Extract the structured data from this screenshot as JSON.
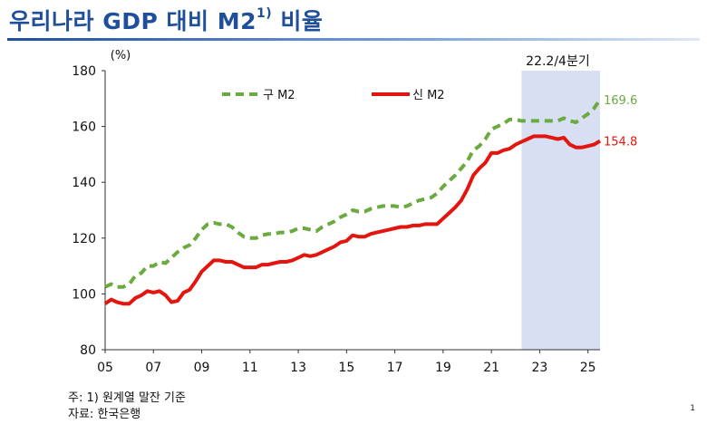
{
  "title": {
    "main": "우리나라 GDP 대비 M2",
    "sup": "1)",
    "suffix": " 비율"
  },
  "chart_data": {
    "type": "line",
    "unit_label": "(%)",
    "ylim": [
      80,
      180
    ],
    "yticks": [
      80,
      100,
      120,
      140,
      160,
      180
    ],
    "xlim": [
      2005,
      2025.5
    ],
    "xticks": [
      {
        "value": 2005,
        "label": "05"
      },
      {
        "value": 2007,
        "label": "07"
      },
      {
        "value": 2009,
        "label": "09"
      },
      {
        "value": 2011,
        "label": "11"
      },
      {
        "value": 2013,
        "label": "13"
      },
      {
        "value": 2015,
        "label": "15"
      },
      {
        "value": 2017,
        "label": "17"
      },
      {
        "value": 2019,
        "label": "19"
      },
      {
        "value": 2021,
        "label": "21"
      },
      {
        "value": 2023,
        "label": "23"
      },
      {
        "value": 2025,
        "label": "25"
      }
    ],
    "grid": false,
    "legend": "top-center",
    "shaded_region": {
      "from": 2022.25,
      "to": 2025.5,
      "label": "22.2/4분기",
      "color": "#d9dff3"
    },
    "series": [
      {
        "name": "구 M2",
        "color": "#6aaa3e",
        "style": "dashed",
        "end_label": "169.6",
        "points": [
          [
            2005.0,
            102.5
          ],
          [
            2005.25,
            103.5
          ],
          [
            2005.5,
            102.5
          ],
          [
            2005.75,
            102.5
          ],
          [
            2006.0,
            103.5
          ],
          [
            2006.25,
            106.5
          ],
          [
            2006.5,
            107.5
          ],
          [
            2006.75,
            110.0
          ],
          [
            2007.0,
            110.0
          ],
          [
            2007.25,
            111.5
          ],
          [
            2007.5,
            111.0
          ],
          [
            2007.75,
            113.0
          ],
          [
            2008.0,
            115.0
          ],
          [
            2008.25,
            116.5
          ],
          [
            2008.5,
            117.5
          ],
          [
            2008.75,
            120.0
          ],
          [
            2009.0,
            123.0
          ],
          [
            2009.25,
            125.0
          ],
          [
            2009.5,
            125.5
          ],
          [
            2009.75,
            125.0
          ],
          [
            2010.0,
            125.0
          ],
          [
            2010.25,
            124.0
          ],
          [
            2010.5,
            122.0
          ],
          [
            2010.75,
            120.5
          ],
          [
            2011.0,
            120.0
          ],
          [
            2011.25,
            120.0
          ],
          [
            2011.5,
            121.0
          ],
          [
            2011.75,
            121.5
          ],
          [
            2012.0,
            121.5
          ],
          [
            2012.25,
            122.0
          ],
          [
            2012.5,
            122.0
          ],
          [
            2012.75,
            122.5
          ],
          [
            2013.0,
            123.5
          ],
          [
            2013.25,
            123.5
          ],
          [
            2013.5,
            123.0
          ],
          [
            2013.75,
            122.5
          ],
          [
            2014.0,
            124.0
          ],
          [
            2014.25,
            125.0
          ],
          [
            2014.5,
            126.0
          ],
          [
            2014.75,
            127.5
          ],
          [
            2015.0,
            128.5
          ],
          [
            2015.25,
            130.0
          ],
          [
            2015.5,
            129.5
          ],
          [
            2015.75,
            129.5
          ],
          [
            2016.0,
            130.5
          ],
          [
            2016.25,
            131.0
          ],
          [
            2016.5,
            131.5
          ],
          [
            2016.75,
            131.5
          ],
          [
            2017.0,
            131.5
          ],
          [
            2017.25,
            131.0
          ],
          [
            2017.5,
            131.5
          ],
          [
            2017.75,
            132.5
          ],
          [
            2018.0,
            133.5
          ],
          [
            2018.25,
            134.0
          ],
          [
            2018.5,
            134.5
          ],
          [
            2018.75,
            136.0
          ],
          [
            2019.0,
            138.5
          ],
          [
            2019.25,
            140.5
          ],
          [
            2019.5,
            142.5
          ],
          [
            2019.75,
            145.0
          ],
          [
            2020.0,
            147.5
          ],
          [
            2020.25,
            151.5
          ],
          [
            2020.5,
            153.0
          ],
          [
            2020.75,
            155.5
          ],
          [
            2021.0,
            159.0
          ],
          [
            2021.25,
            160.0
          ],
          [
            2021.5,
            161.0
          ],
          [
            2021.75,
            162.5
          ],
          [
            2022.0,
            162.5
          ],
          [
            2022.25,
            162.0
          ],
          [
            2022.5,
            162.0
          ],
          [
            2022.75,
            162.0
          ],
          [
            2023.0,
            162.0
          ],
          [
            2023.25,
            162.0
          ],
          [
            2023.5,
            162.0
          ],
          [
            2023.75,
            162.0
          ],
          [
            2024.0,
            163.0
          ],
          [
            2024.25,
            162.0
          ],
          [
            2024.5,
            161.5
          ],
          [
            2024.75,
            163.0
          ],
          [
            2025.0,
            164.5
          ],
          [
            2025.25,
            166.5
          ],
          [
            2025.5,
            169.6
          ]
        ]
      },
      {
        "name": "신 M2",
        "color": "#e3160f",
        "style": "solid",
        "end_label": "154.8",
        "points": [
          [
            2005.0,
            96.5
          ],
          [
            2005.25,
            98.0
          ],
          [
            2005.5,
            97.0
          ],
          [
            2005.75,
            96.5
          ],
          [
            2006.0,
            96.5
          ],
          [
            2006.25,
            98.5
          ],
          [
            2006.5,
            99.5
          ],
          [
            2006.75,
            101.0
          ],
          [
            2007.0,
            100.5
          ],
          [
            2007.25,
            101.0
          ],
          [
            2007.5,
            99.5
          ],
          [
            2007.75,
            97.0
          ],
          [
            2008.0,
            97.5
          ],
          [
            2008.25,
            100.5
          ],
          [
            2008.5,
            101.5
          ],
          [
            2008.75,
            104.5
          ],
          [
            2009.0,
            108.0
          ],
          [
            2009.25,
            110.0
          ],
          [
            2009.5,
            112.0
          ],
          [
            2009.75,
            112.0
          ],
          [
            2010.0,
            111.5
          ],
          [
            2010.25,
            111.5
          ],
          [
            2010.5,
            110.5
          ],
          [
            2010.75,
            109.5
          ],
          [
            2011.0,
            109.5
          ],
          [
            2011.25,
            109.5
          ],
          [
            2011.5,
            110.5
          ],
          [
            2011.75,
            110.5
          ],
          [
            2012.0,
            111.0
          ],
          [
            2012.25,
            111.5
          ],
          [
            2012.5,
            111.5
          ],
          [
            2012.75,
            112.0
          ],
          [
            2013.0,
            113.0
          ],
          [
            2013.25,
            114.0
          ],
          [
            2013.5,
            113.5
          ],
          [
            2013.75,
            114.0
          ],
          [
            2014.0,
            115.0
          ],
          [
            2014.25,
            116.0
          ],
          [
            2014.5,
            117.0
          ],
          [
            2014.75,
            118.5
          ],
          [
            2015.0,
            119.0
          ],
          [
            2015.25,
            121.0
          ],
          [
            2015.5,
            120.5
          ],
          [
            2015.75,
            120.5
          ],
          [
            2016.0,
            121.5
          ],
          [
            2016.25,
            122.0
          ],
          [
            2016.5,
            122.5
          ],
          [
            2016.75,
            123.0
          ],
          [
            2017.0,
            123.5
          ],
          [
            2017.25,
            124.0
          ],
          [
            2017.5,
            124.0
          ],
          [
            2017.75,
            124.5
          ],
          [
            2018.0,
            124.5
          ],
          [
            2018.25,
            125.0
          ],
          [
            2018.5,
            125.0
          ],
          [
            2018.75,
            125.0
          ],
          [
            2019.0,
            127.0
          ],
          [
            2019.25,
            129.0
          ],
          [
            2019.5,
            131.0
          ],
          [
            2019.75,
            133.5
          ],
          [
            2020.0,
            137.5
          ],
          [
            2020.25,
            142.5
          ],
          [
            2020.5,
            145.0
          ],
          [
            2020.75,
            147.0
          ],
          [
            2021.0,
            150.5
          ],
          [
            2021.25,
            150.5
          ],
          [
            2021.5,
            151.5
          ],
          [
            2021.75,
            152.0
          ],
          [
            2022.0,
            153.5
          ],
          [
            2022.25,
            154.5
          ],
          [
            2022.5,
            155.5
          ],
          [
            2022.75,
            156.5
          ],
          [
            2023.0,
            156.5
          ],
          [
            2023.25,
            156.5
          ],
          [
            2023.5,
            156.0
          ],
          [
            2023.75,
            155.5
          ],
          [
            2024.0,
            156.0
          ],
          [
            2024.25,
            153.5
          ],
          [
            2024.5,
            152.5
          ],
          [
            2024.75,
            152.5
          ],
          [
            2025.0,
            153.0
          ],
          [
            2025.25,
            153.5
          ],
          [
            2025.5,
            154.8
          ]
        ]
      }
    ]
  },
  "footnotes": {
    "note": "주: 1) 원계열 말잔 기준",
    "source": "자료: 한국은행"
  },
  "page_number": "1"
}
